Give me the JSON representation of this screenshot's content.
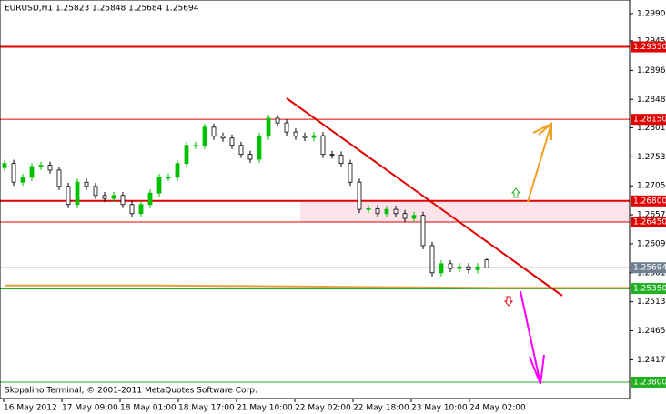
{
  "chart_data": {
    "type": "candlestick",
    "title": "EURUSD,H1  1.25823 1.25848 1.25684 1.25694",
    "footer": "Skopalino Terminal, © 2001-2011 MetaQuotes Software Corp.",
    "x_labels": [
      "16 May 2012",
      "17 May 09:00",
      "18 May 01:00",
      "18 May 17:00",
      "21 May 10:00",
      "22 May 02:00",
      "22 May 18:00",
      "23 May 10:00",
      "24 May 02:00"
    ],
    "ylim": [
      1.30126,
      1.23528
    ],
    "yticks": [
      {
        "value": 1.299,
        "label": "1.29900"
      },
      {
        "value": 1.2945,
        "label": "1.29450"
      },
      {
        "value": 1.2896,
        "label": "1.28960"
      },
      {
        "value": 1.2848,
        "label": "1.28480"
      },
      {
        "value": 1.2801,
        "label": "1.28010"
      },
      {
        "value": 1.2753,
        "label": "1.27530"
      },
      {
        "value": 1.2705,
        "label": "1.27050"
      },
      {
        "value": 1.2657,
        "label": "1.26570"
      },
      {
        "value": 1.2609,
        "label": "1.26090"
      },
      {
        "value": 1.2561,
        "label": "1.25610"
      },
      {
        "value": 1.2513,
        "label": "1.25130"
      },
      {
        "value": 1.2465,
        "label": "1.24650"
      },
      {
        "value": 1.2417,
        "label": "1.24170"
      }
    ],
    "up_color": "#00c000",
    "down_color": "#000000",
    "open": [
      1.2735,
      1.2742,
      1.2711,
      1.2719,
      1.2737,
      1.2739,
      1.2731,
      1.2704,
      1.2674,
      1.2711,
      1.2704,
      1.2689,
      1.2684,
      1.2689,
      1.2674,
      1.2659,
      1.2674,
      1.2693,
      1.2719,
      1.2719,
      1.2742,
      1.2772,
      1.2772,
      1.2802,
      1.2787,
      1.2784,
      1.2772,
      1.2757,
      1.2749,
      1.2787,
      1.2817,
      1.2809,
      1.2794,
      1.2787,
      1.2785,
      1.2788,
      1.2757,
      1.2756,
      1.2742,
      1.2711,
      1.2666,
      1.2667,
      1.2659,
      1.2666,
      1.2659,
      1.2651,
      1.2656,
      1.2606,
      1.2561,
      1.2576,
      1.2568,
      1.2571,
      1.2566,
      1.25823
    ],
    "high": [
      1.2748,
      1.2748,
      1.2725,
      1.2743,
      1.2745,
      1.2745,
      1.2737,
      1.271,
      1.2717,
      1.2717,
      1.271,
      1.2695,
      1.2695,
      1.2695,
      1.268,
      1.268,
      1.2699,
      1.2725,
      1.2725,
      1.2748,
      1.2778,
      1.2778,
      1.2808,
      1.2808,
      1.2793,
      1.279,
      1.2778,
      1.2763,
      1.2793,
      1.2823,
      1.2823,
      1.2815,
      1.28,
      1.2793,
      1.2794,
      1.2794,
      1.2763,
      1.2762,
      1.2748,
      1.2717,
      1.2673,
      1.2673,
      1.2672,
      1.2672,
      1.2665,
      1.2662,
      1.2662,
      1.2612,
      1.2582,
      1.2582,
      1.2577,
      1.2577,
      1.2577,
      1.25848
    ],
    "low": [
      1.2729,
      1.2705,
      1.2705,
      1.2713,
      1.2731,
      1.2725,
      1.2698,
      1.2668,
      1.2668,
      1.2698,
      1.2683,
      1.2678,
      1.2678,
      1.2668,
      1.2653,
      1.2653,
      1.2668,
      1.2687,
      1.2713,
      1.2713,
      1.2736,
      1.2766,
      1.2766,
      1.2781,
      1.2778,
      1.2766,
      1.2751,
      1.2743,
      1.2743,
      1.2781,
      1.2803,
      1.2788,
      1.2781,
      1.2779,
      1.2779,
      1.2751,
      1.275,
      1.2736,
      1.2705,
      1.266,
      1.266,
      1.2653,
      1.2653,
      1.2653,
      1.2645,
      1.2645,
      1.26,
      1.2555,
      1.2555,
      1.2562,
      1.2562,
      1.256,
      1.256,
      1.25684
    ],
    "close": [
      1.2742,
      1.2711,
      1.2719,
      1.2737,
      1.2739,
      1.2731,
      1.2704,
      1.2674,
      1.2711,
      1.2704,
      1.2689,
      1.2684,
      1.2689,
      1.2674,
      1.2659,
      1.2674,
      1.2693,
      1.2719,
      1.2719,
      1.2742,
      1.2772,
      1.2772,
      1.2802,
      1.2787,
      1.2784,
      1.2772,
      1.2757,
      1.2749,
      1.2787,
      1.2817,
      1.2809,
      1.2794,
      1.2787,
      1.2785,
      1.2788,
      1.2757,
      1.2756,
      1.2742,
      1.2711,
      1.2666,
      1.2667,
      1.2659,
      1.2666,
      1.2659,
      1.2651,
      1.2656,
      1.2606,
      1.2561,
      1.2576,
      1.2568,
      1.2571,
      1.2566,
      1.2571,
      1.25694
    ],
    "ma": {
      "color": "#e0a040",
      "x": [
        0,
        17,
        35,
        54,
        69
      ],
      "values": [
        1.254,
        1.254,
        1.2538,
        1.2536,
        1.2536
      ]
    },
    "levels": [
      {
        "value": 1.2935,
        "label": "1.29350",
        "color": "#e00000",
        "width": 2
      },
      {
        "value": 1.2815,
        "label": "1.28150",
        "color": "#e00000",
        "width": 1
      },
      {
        "value": 1.268,
        "label": "1.26800",
        "color": "#e00000",
        "width": 2
      },
      {
        "value": 1.2645,
        "label": "1.26450",
        "color": "#e00000",
        "width": 1
      },
      {
        "value": 1.25694,
        "label": "1.25694",
        "color": "#708090",
        "width": 1
      },
      {
        "value": 1.2535,
        "label": "1.25350",
        "color": "#20b020",
        "width": 2
      },
      {
        "value": 1.238,
        "label": "1.23800",
        "color": "#20b020",
        "width": 1
      }
    ],
    "zone_color": "#fde4ea"
  }
}
